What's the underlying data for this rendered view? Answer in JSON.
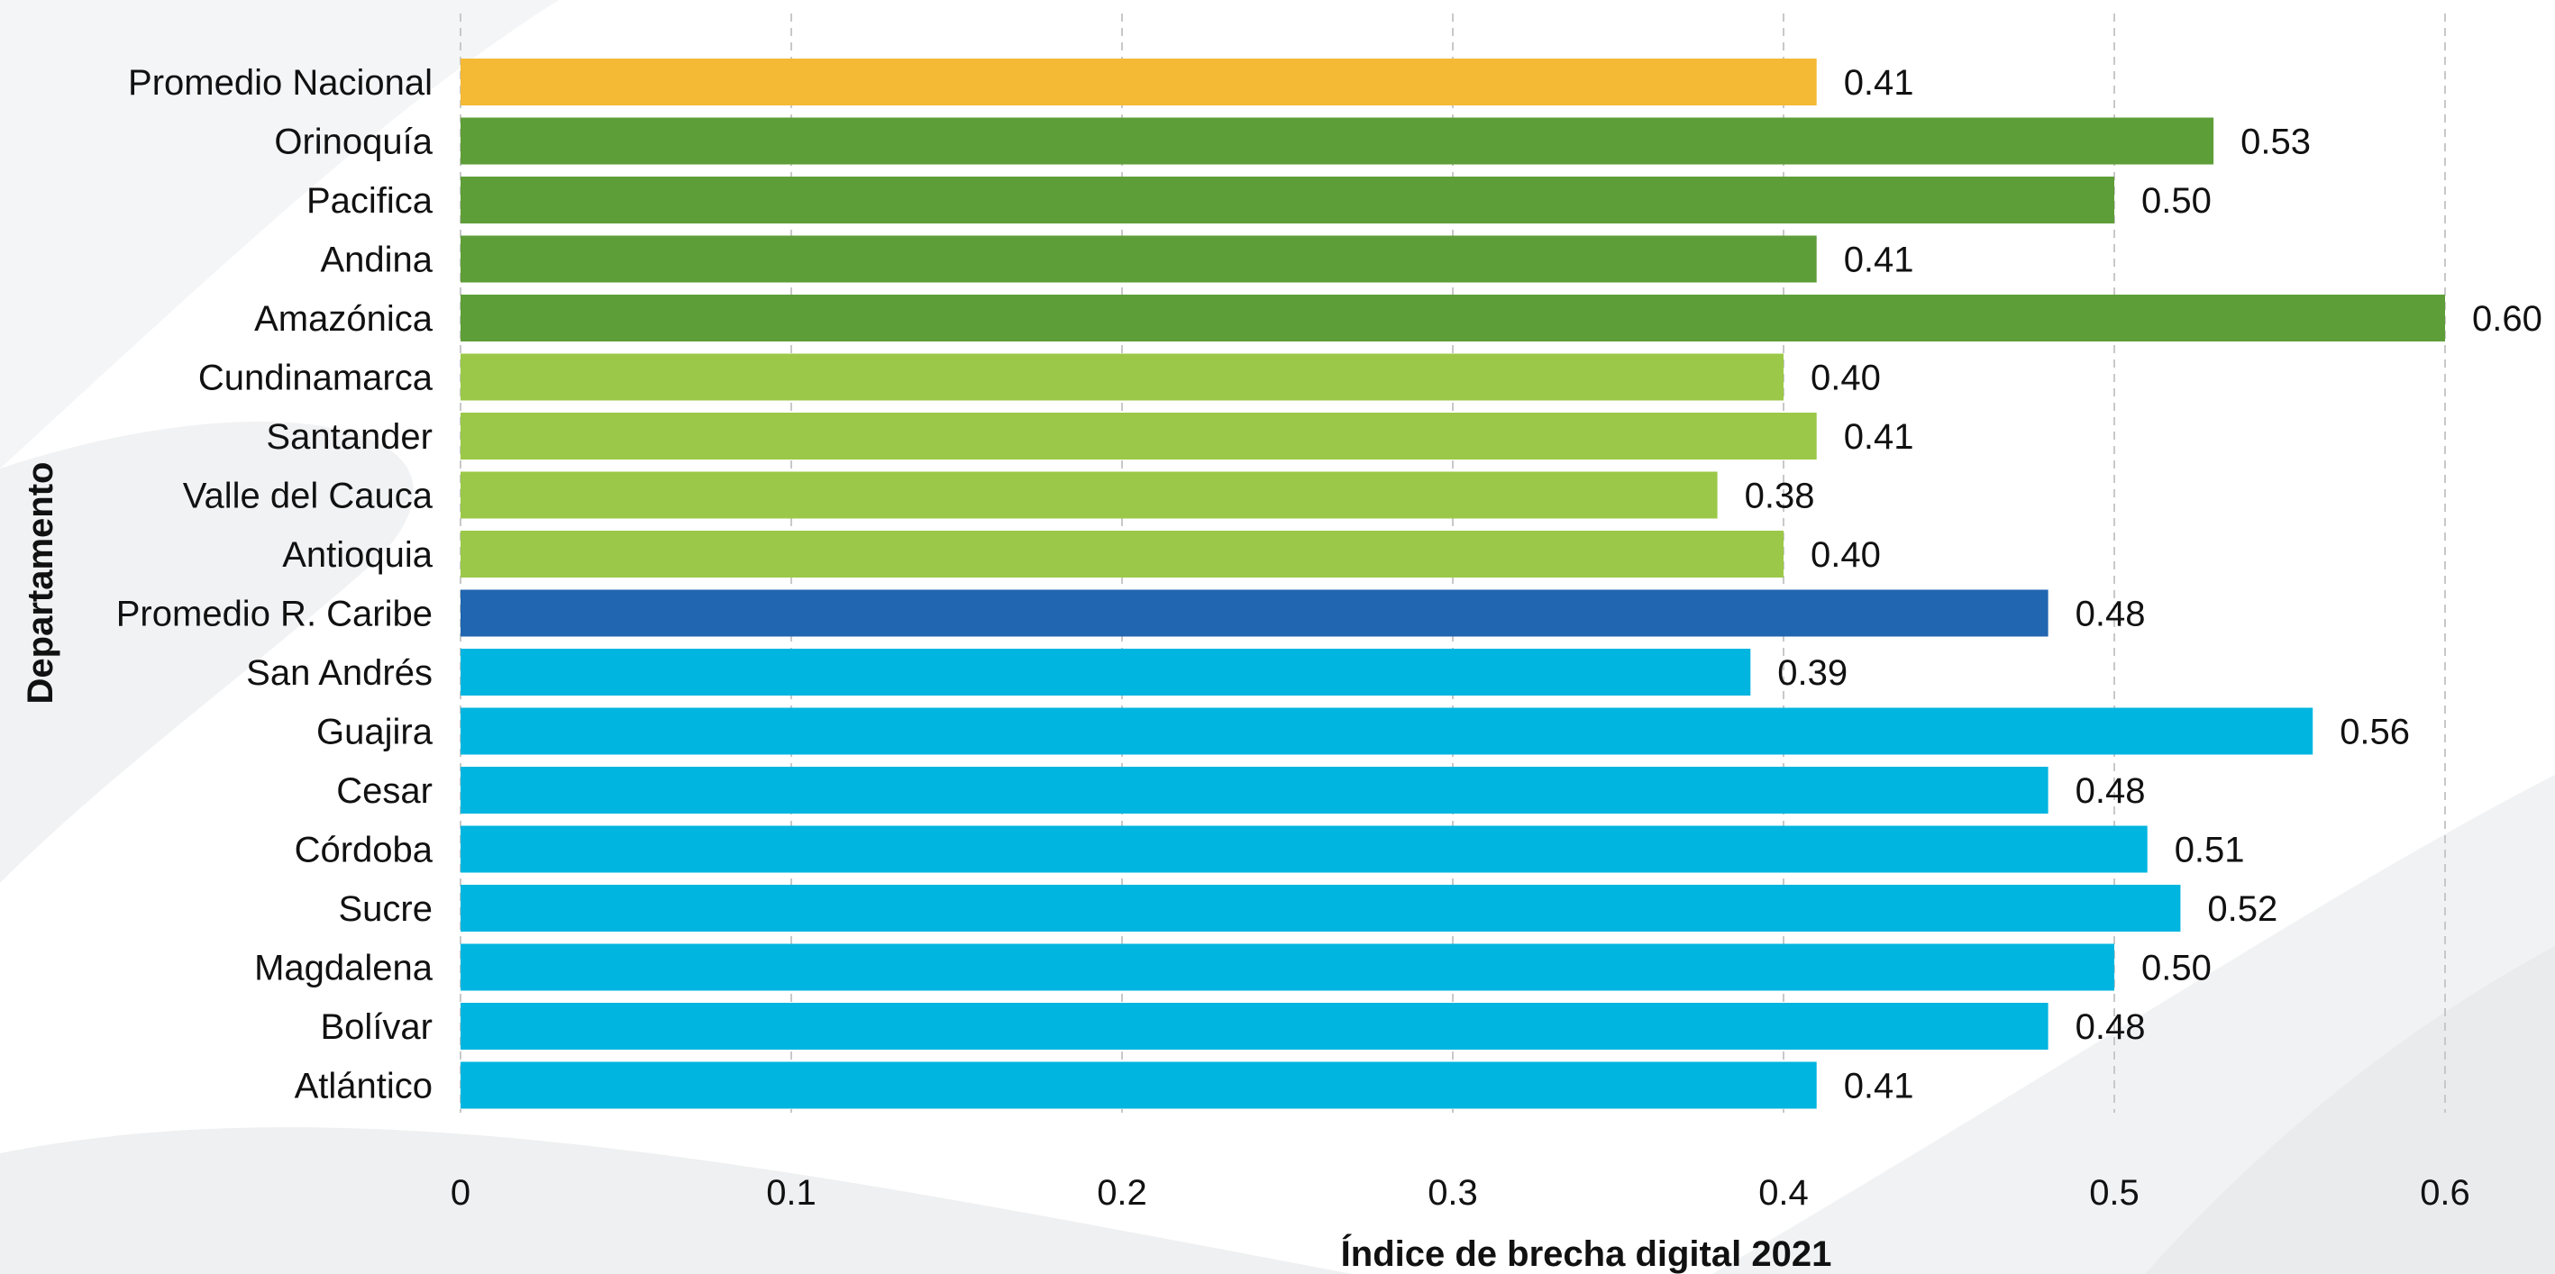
{
  "chart_data": {
    "type": "bar",
    "orientation": "horizontal",
    "xlabel": "Índice de brecha digital 2021",
    "ylabel": "Departamento",
    "xlim": [
      0,
      0.6
    ],
    "x_ticks": [
      "0",
      "0.1",
      "0.2",
      "0.3",
      "0.4",
      "0.5",
      "0.6"
    ],
    "grid": "vertical dashed",
    "categories": [
      "Promedio Nacional",
      "Orinoquía",
      "Pacifica",
      "Andina",
      "Amazónica",
      "Cundinamarca",
      "Santander",
      "Valle del Cauca",
      "Antioquia",
      "Promedio R. Caribe",
      "San Andrés",
      "Guajira",
      "Cesar",
      "Córdoba",
      "Sucre",
      "Magdalena",
      "Bolívar",
      "Atlántico"
    ],
    "values": [
      0.41,
      0.53,
      0.5,
      0.41,
      0.6,
      0.4,
      0.41,
      0.38,
      0.4,
      0.48,
      0.39,
      0.56,
      0.48,
      0.51,
      0.52,
      0.5,
      0.48,
      0.41
    ],
    "value_labels": [
      "0.41",
      "0.53",
      "0.50",
      "0.41",
      "0.60",
      "0.40",
      "0.41",
      "0.38",
      "0.40",
      "0.48",
      "0.39",
      "0.56",
      "0.48",
      "0.51",
      "0.52",
      "0.50",
      "0.48",
      "0.41"
    ],
    "bar_colors": [
      "#F4B935",
      "#5E9E38",
      "#5E9E38",
      "#5E9E38",
      "#5E9E38",
      "#9BC848",
      "#9BC848",
      "#9BC848",
      "#9BC848",
      "#2166B0",
      "#00B5E0",
      "#00B5E0",
      "#00B5E0",
      "#00B5E0",
      "#00B5E0",
      "#00B5E0",
      "#00B5E0",
      "#00B5E0"
    ]
  }
}
